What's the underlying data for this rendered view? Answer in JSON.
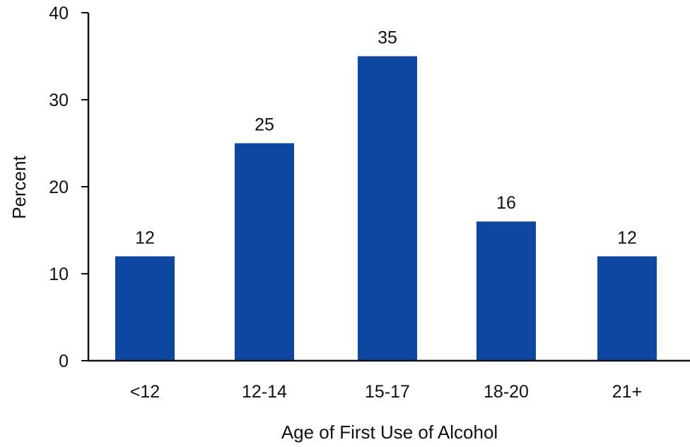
{
  "chart_data": {
    "type": "bar",
    "title": "",
    "xlabel": "Age of First Use of Alcohol",
    "ylabel": "Percent",
    "categories": [
      "<12",
      "12-14",
      "15-17",
      "18-20",
      "21+"
    ],
    "values": [
      12,
      25,
      35,
      16,
      12
    ],
    "data_labels": [
      "12",
      "25",
      "35",
      "16",
      "12"
    ],
    "ylim": [
      0,
      40
    ],
    "yticks": [
      0,
      10,
      20,
      30,
      40
    ],
    "ytick_labels": [
      "0",
      "10",
      "20",
      "30",
      "40"
    ],
    "grid": false,
    "legend": "none",
    "bar_color": "#0d47a1"
  }
}
